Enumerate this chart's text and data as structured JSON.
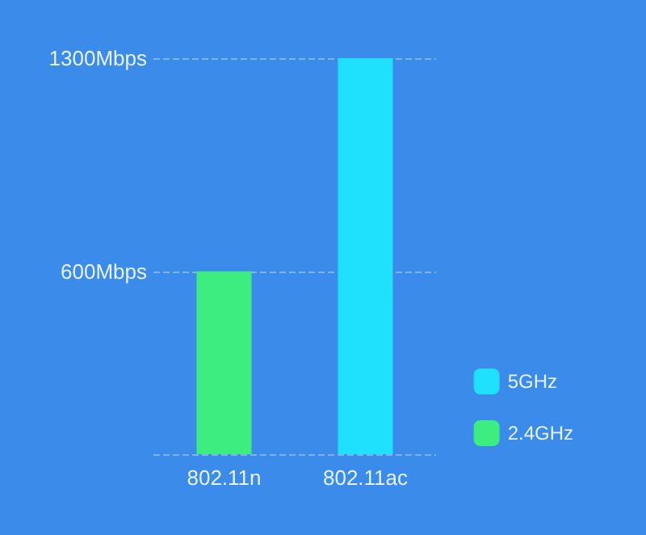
{
  "chart_data": {
    "type": "bar",
    "categories": [
      "802.11n",
      "802.11ac"
    ],
    "series": [
      {
        "name": "5GHz",
        "color": "#1fe0fd",
        "values": [
          null,
          1300
        ]
      },
      {
        "name": "2.4GHz",
        "color": "#3ded7f",
        "values": [
          600,
          null
        ]
      }
    ],
    "ylim": [
      0,
      1300
    ],
    "yticks": [
      {
        "value": 0,
        "label": null
      },
      {
        "value": 600,
        "label": "600Mbps"
      },
      {
        "value": 1300,
        "label": "1300Mbps"
      }
    ],
    "grid": "y",
    "legend": "bottom right"
  }
}
